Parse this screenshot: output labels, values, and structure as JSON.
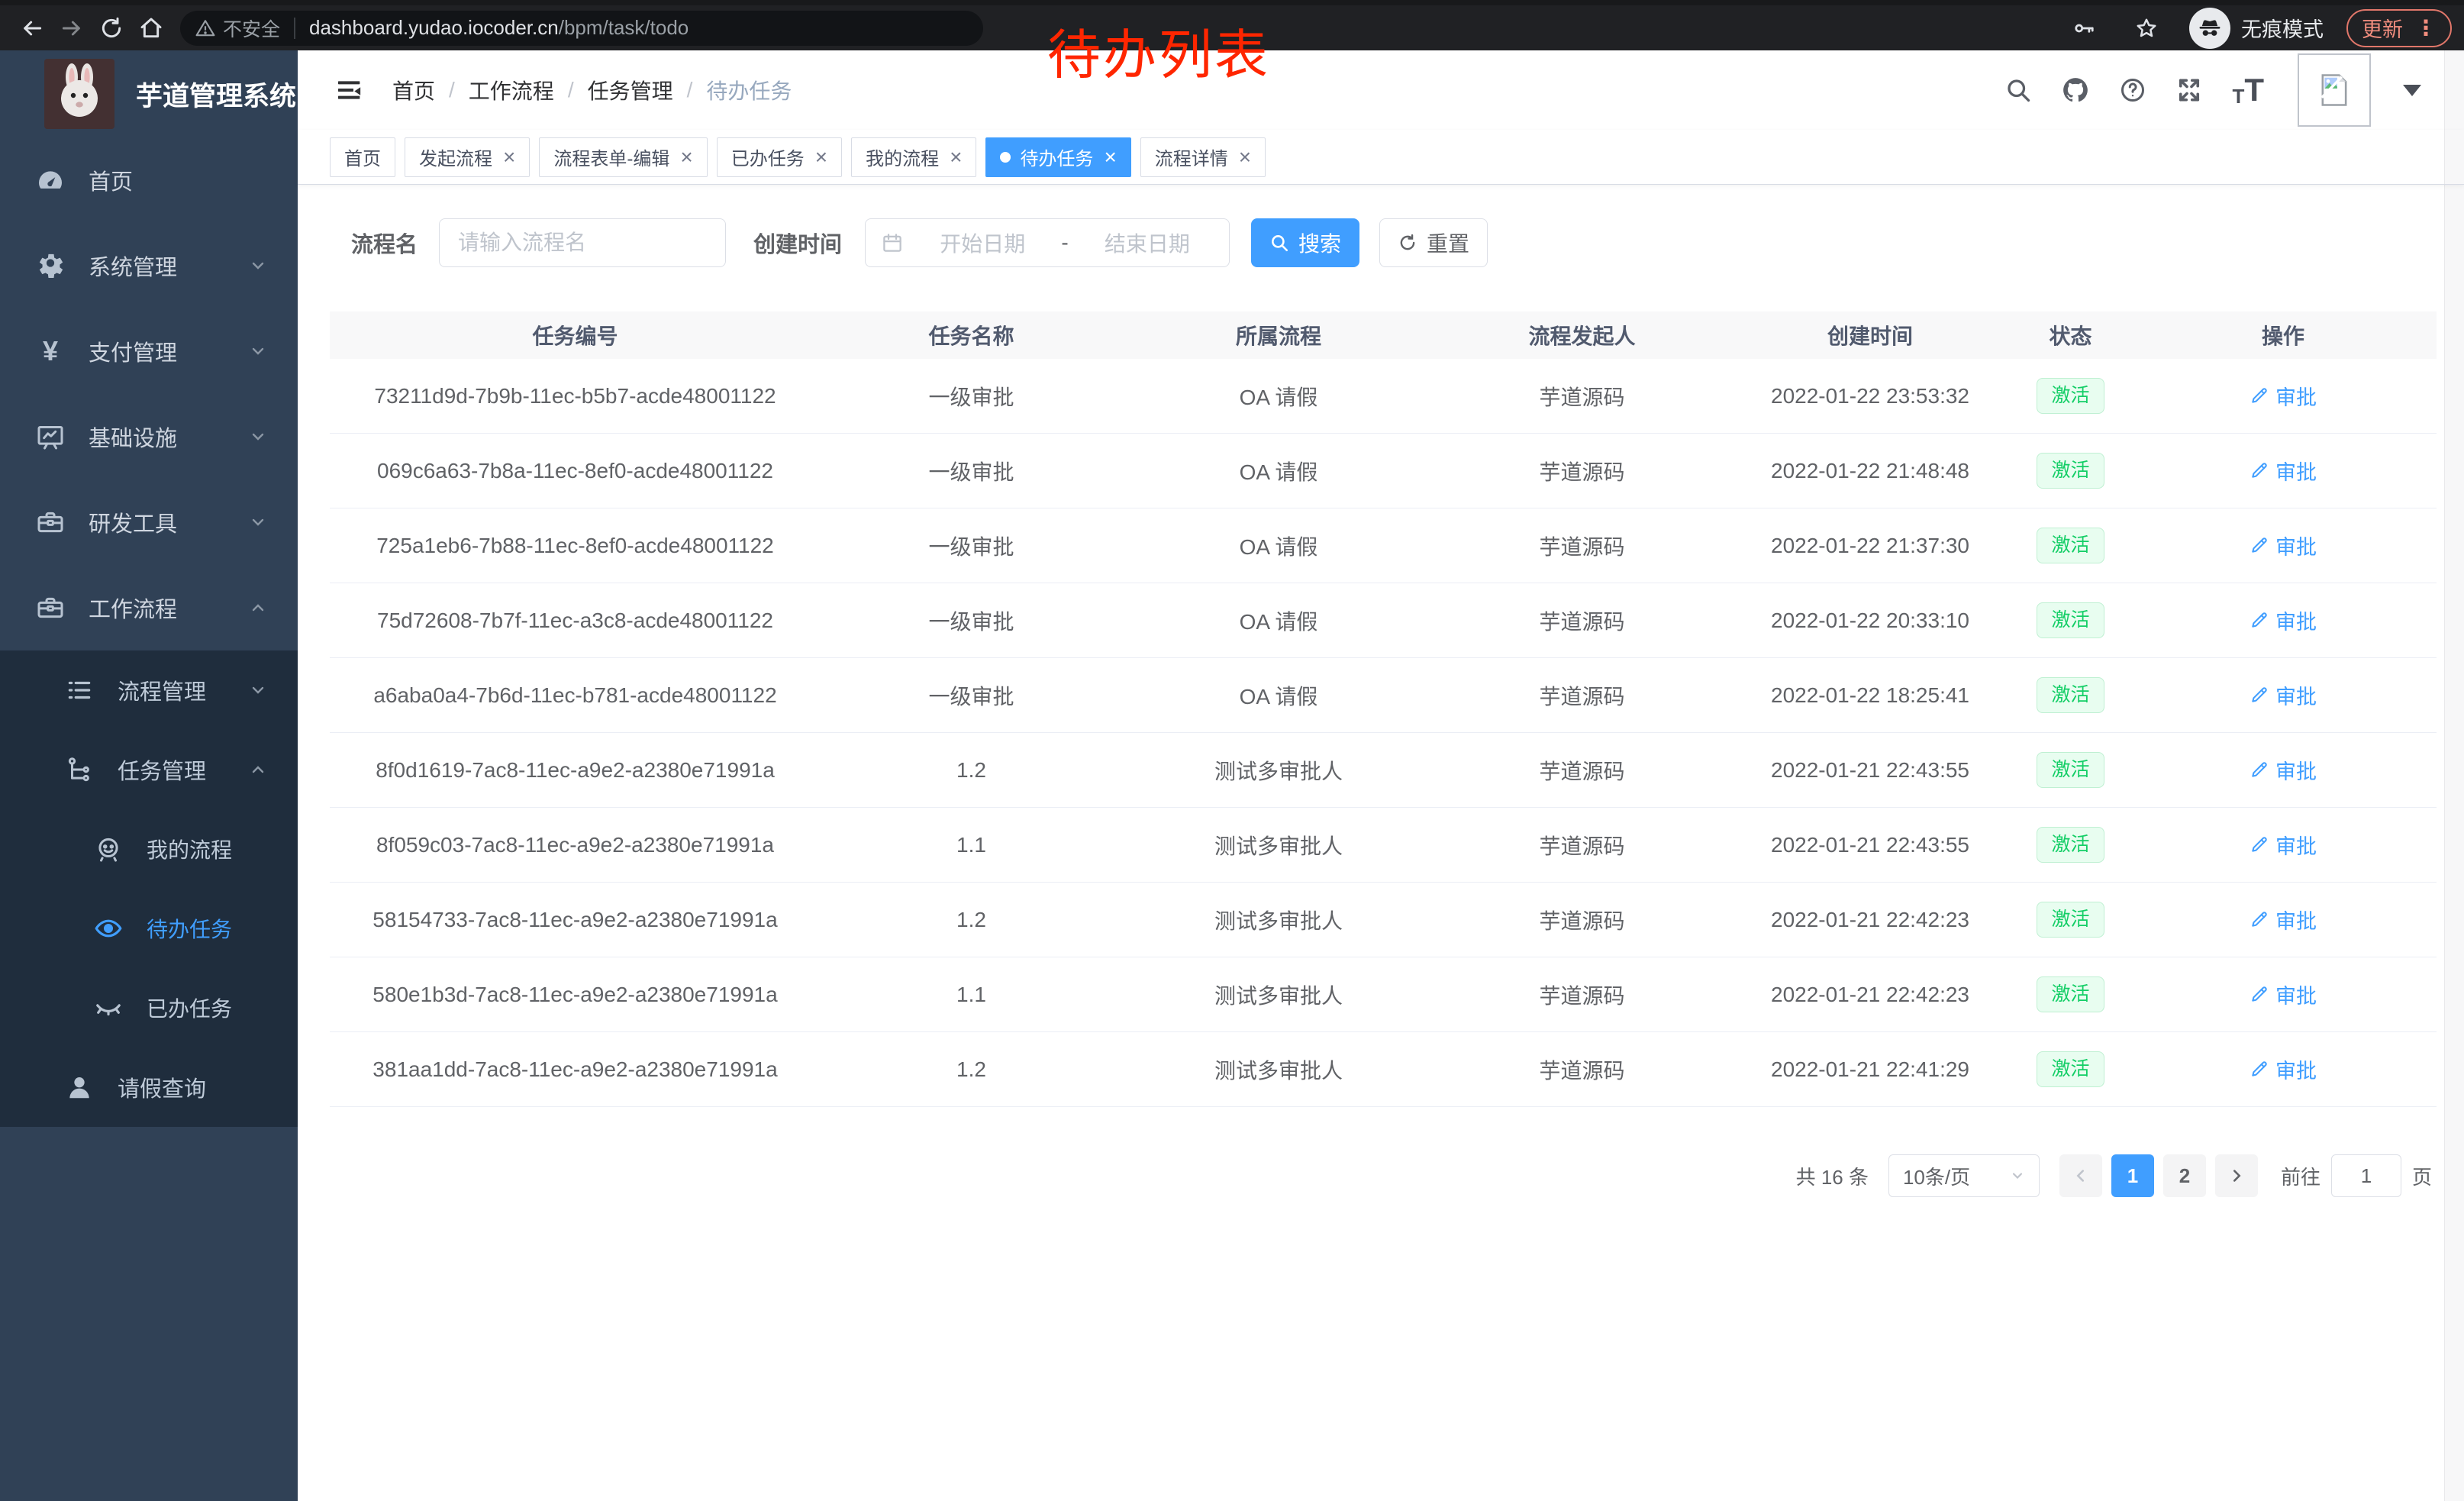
{
  "annotation": {
    "text": "待办列表"
  },
  "browser": {
    "security_label": "不安全",
    "url_host": "dashboard.yudao.iocoder.cn",
    "url_path": "/bpm/task/todo",
    "incognito_label": "无痕模式",
    "update_label": "更新"
  },
  "icons": {
    "yen": "¥",
    "font_small": "T",
    "font_big": "T",
    "dots_vertical": "⋮",
    "close": "×",
    "breadcrumb_sep": "/",
    "question_mark": "?",
    "names": [
      "back-icon",
      "forward-icon",
      "reload-icon",
      "home-icon",
      "warning-icon",
      "key-icon",
      "star-icon",
      "incognito-icon",
      "search-icon",
      "github-icon",
      "help-icon",
      "fullscreen-icon",
      "font-size-icon",
      "broken-image-icon",
      "caret-down-icon",
      "hamburger-icon",
      "dashboard-icon",
      "gear-icon",
      "yen-icon",
      "monitor-icon",
      "toolbox-icon",
      "list-icon",
      "tree-icon",
      "robot-icon",
      "eye-icon",
      "eye-closed-icon",
      "user-icon",
      "calendar-icon",
      "magnifier-icon",
      "refresh-icon",
      "edit-icon",
      "chevron-icons"
    ]
  },
  "colors": {
    "accent": "#409eff",
    "sidebar_bg": "#304156",
    "submenu_bg": "#1f2d3d",
    "status_green": "#13ce66",
    "status_bg": "#e8fdf0",
    "annotation_red": "#ff2600",
    "chrome_bg": "#202124"
  },
  "sidebar": {
    "title": "芋道管理系统",
    "items": [
      {
        "label": "首页"
      },
      {
        "label": "系统管理"
      },
      {
        "label": "支付管理"
      },
      {
        "label": "基础设施"
      },
      {
        "label": "研发工具"
      },
      {
        "label": "工作流程"
      }
    ],
    "submenu": [
      {
        "label": "流程管理"
      },
      {
        "label": "任务管理"
      },
      {
        "label": "我的流程"
      },
      {
        "label": "待办任务"
      },
      {
        "label": "已办任务"
      },
      {
        "label": "请假查询"
      }
    ]
  },
  "header": {
    "breadcrumb": [
      "首页",
      "工作流程",
      "任务管理",
      "待办任务"
    ]
  },
  "tabs": [
    {
      "label": "首页"
    },
    {
      "label": "发起流程"
    },
    {
      "label": "流程表单-编辑"
    },
    {
      "label": "已办任务"
    },
    {
      "label": "我的流程"
    },
    {
      "label": "待办任务"
    },
    {
      "label": "流程详情"
    }
  ],
  "filters": {
    "name_label": "流程名",
    "name_placeholder": "请输入流程名",
    "time_label": "创建时间",
    "start_placeholder": "开始日期",
    "range_separator": "-",
    "end_placeholder": "结束日期",
    "search_label": "搜索",
    "reset_label": "重置"
  },
  "table": {
    "columns": [
      "任务编号",
      "任务名称",
      "所属流程",
      "流程发起人",
      "创建时间",
      "状态",
      "操作"
    ],
    "action_label": "审批",
    "rows": [
      {
        "id": "73211d9d-7b9b-11ec-b5b7-acde48001122",
        "name": "一级审批",
        "process": "OA 请假",
        "starter": "芋道源码",
        "time": "2022-01-22 23:53:32",
        "status": "激活"
      },
      {
        "id": "069c6a63-7b8a-11ec-8ef0-acde48001122",
        "name": "一级审批",
        "process": "OA 请假",
        "starter": "芋道源码",
        "time": "2022-01-22 21:48:48",
        "status": "激活"
      },
      {
        "id": "725a1eb6-7b88-11ec-8ef0-acde48001122",
        "name": "一级审批",
        "process": "OA 请假",
        "starter": "芋道源码",
        "time": "2022-01-22 21:37:30",
        "status": "激活"
      },
      {
        "id": "75d72608-7b7f-11ec-a3c8-acde48001122",
        "name": "一级审批",
        "process": "OA 请假",
        "starter": "芋道源码",
        "time": "2022-01-22 20:33:10",
        "status": "激活"
      },
      {
        "id": "a6aba0a4-7b6d-11ec-b781-acde48001122",
        "name": "一级审批",
        "process": "OA 请假",
        "starter": "芋道源码",
        "time": "2022-01-22 18:25:41",
        "status": "激活"
      },
      {
        "id": "8f0d1619-7ac8-11ec-a9e2-a2380e71991a",
        "name": "1.2",
        "process": "测试多审批人",
        "starter": "芋道源码",
        "time": "2022-01-21 22:43:55",
        "status": "激活"
      },
      {
        "id": "8f059c03-7ac8-11ec-a9e2-a2380e71991a",
        "name": "1.1",
        "process": "测试多审批人",
        "starter": "芋道源码",
        "time": "2022-01-21 22:43:55",
        "status": "激活"
      },
      {
        "id": "58154733-7ac8-11ec-a9e2-a2380e71991a",
        "name": "1.2",
        "process": "测试多审批人",
        "starter": "芋道源码",
        "time": "2022-01-21 22:42:23",
        "status": "激活"
      },
      {
        "id": "580e1b3d-7ac8-11ec-a9e2-a2380e71991a",
        "name": "1.1",
        "process": "测试多审批人",
        "starter": "芋道源码",
        "time": "2022-01-21 22:42:23",
        "status": "激活"
      },
      {
        "id": "381aa1dd-7ac8-11ec-a9e2-a2380e71991a",
        "name": "1.2",
        "process": "测试多审批人",
        "starter": "芋道源码",
        "time": "2022-01-21 22:41:29",
        "status": "激活"
      }
    ]
  },
  "pagination": {
    "total_label": "共 16 条",
    "page_size": "10条/页",
    "page_1": "1",
    "page_2": "2",
    "goto_label": "前往",
    "goto_value": "1",
    "page_suffix": "页"
  }
}
